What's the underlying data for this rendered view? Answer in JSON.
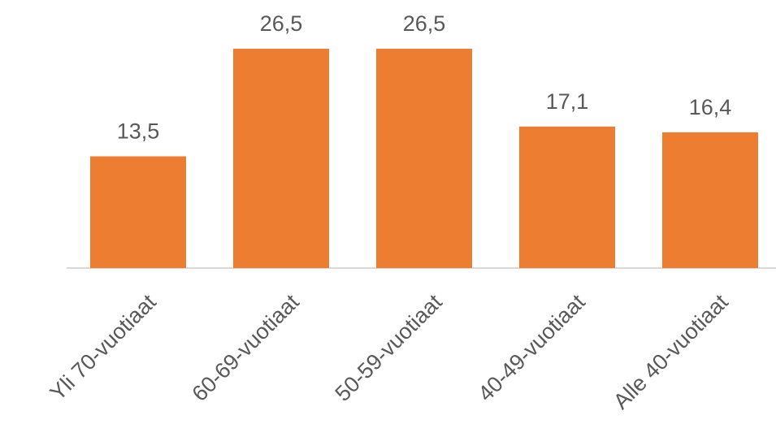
{
  "chart_data": {
    "type": "bar",
    "categories": [
      "Yli 70-vuotiaat",
      "60-69-vuotiaat",
      "50-59-vuotiaat",
      "40-49-vuotiaat",
      "Alle 40-vuotiaat"
    ],
    "values": [
      13.5,
      26.5,
      26.5,
      17.1,
      16.4
    ],
    "value_labels": [
      "13,5",
      "26,5",
      "26,5",
      "17,1",
      "16,4"
    ],
    "color": "#ed7d31"
  }
}
